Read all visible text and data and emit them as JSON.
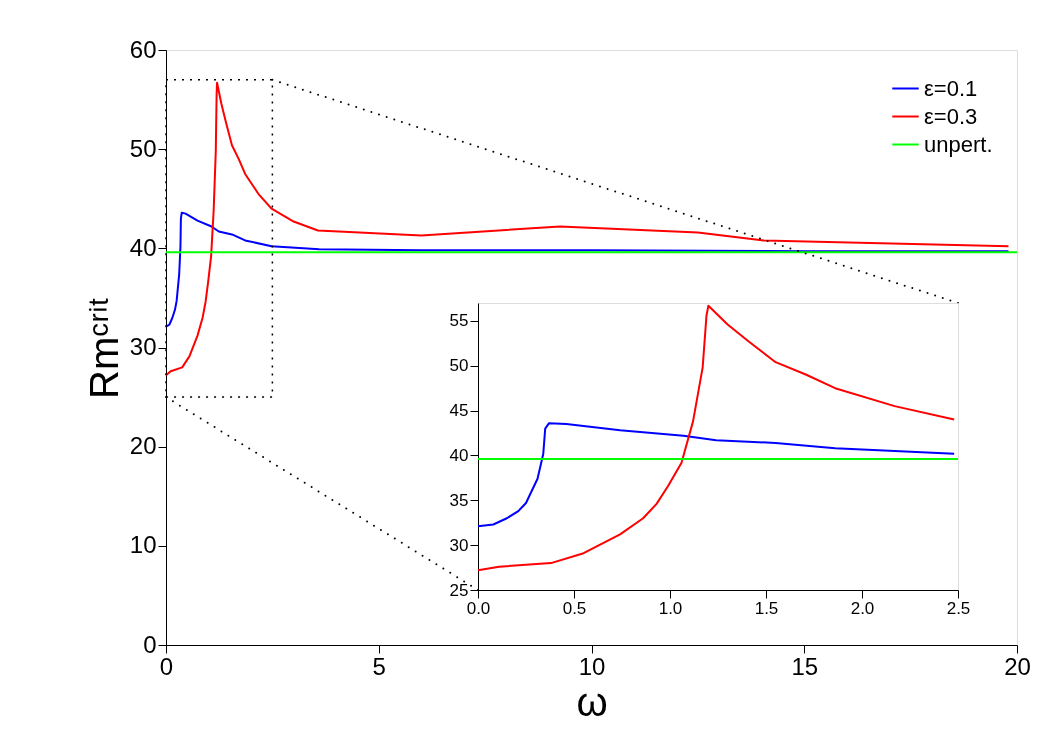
{
  "chart_data": [
    {
      "type": "line",
      "xlabel": "ω",
      "ylabel": "Rmᶜʳⁱᵗ",
      "xlim": [
        0,
        20
      ],
      "ylim": [
        0,
        60
      ],
      "xticks": [
        0,
        5,
        10,
        15,
        20
      ],
      "yticks": [
        0,
        10,
        20,
        30,
        40,
        50,
        60
      ],
      "grid": false,
      "legend": "top right",
      "line_style": "solid",
      "series": [
        {
          "name": "ε=0.1",
          "color": "#0000ff",
          "x": [
            0,
            0.08,
            0.15,
            0.21,
            0.25,
            0.31,
            0.34,
            0.35,
            0.37,
            0.46,
            0.74,
            1.07,
            1.24,
            1.55,
            1.86,
            2.48,
            3.6,
            6,
            10,
            15,
            19.8
          ],
          "values": [
            32.1,
            32.3,
            33.0,
            33.8,
            34.7,
            37.4,
            40.2,
            43.0,
            43.6,
            43.5,
            42.8,
            42.2,
            41.7,
            41.4,
            40.8,
            40.2,
            39.9,
            39.8,
            39.8,
            39.7,
            39.7
          ]
        },
        {
          "name": "ε=0.3",
          "color": "#ff0000",
          "x": [
            0,
            0.11,
            0.38,
            0.55,
            0.74,
            0.86,
            0.93,
            0.99,
            1.06,
            1.12,
            1.17,
            1.19,
            1.2,
            1.3,
            1.41,
            1.55,
            1.71,
            1.86,
            2.17,
            2.48,
            3.0,
            3.57,
            6.0,
            9.26,
            12.5,
            14.05,
            19.8
          ],
          "values": [
            27.2,
            27.6,
            28.0,
            29.1,
            31.2,
            33.0,
            34.6,
            36.6,
            39.2,
            43.8,
            49.8,
            55.6,
            56.7,
            54.6,
            52.7,
            50.4,
            49.0,
            47.5,
            45.5,
            44.0,
            42.7,
            41.8,
            41.3,
            42.2,
            41.6,
            40.8,
            40.2
          ]
        },
        {
          "name": "unpert.",
          "color": "#00ff00",
          "x": [
            0,
            20
          ],
          "values": [
            39.6,
            39.6
          ]
        }
      ]
    },
    {
      "type": "line",
      "xlim": [
        0,
        2.5
      ],
      "ylim": [
        25,
        57
      ],
      "xticks": [
        {
          "value": 0,
          "label": "0.0"
        },
        0.5,
        {
          "value": 1,
          "label": "1.0"
        },
        1.5,
        {
          "value": 2,
          "label": "2.0"
        },
        2.5
      ],
      "yticks": [
        25,
        30,
        35,
        40,
        45,
        50,
        55
      ],
      "grid": false,
      "legend": false,
      "line_style": "solid",
      "series": [
        {
          "color": "#0000ff",
          "x": [
            0,
            0.08,
            0.15,
            0.21,
            0.25,
            0.31,
            0.34,
            0.35,
            0.37,
            0.46,
            0.74,
            1.07,
            1.24,
            1.55,
            1.86,
            2.48
          ],
          "values": [
            32.1,
            32.3,
            33.0,
            33.8,
            34.7,
            37.4,
            40.2,
            43.0,
            43.6,
            43.5,
            42.8,
            42.2,
            41.7,
            41.4,
            40.8,
            40.2
          ]
        },
        {
          "color": "#ff0000",
          "x": [
            0,
            0.11,
            0.38,
            0.55,
            0.74,
            0.86,
            0.93,
            0.99,
            1.06,
            1.12,
            1.17,
            1.19,
            1.2,
            1.3,
            1.41,
            1.55,
            1.71,
            1.86,
            2.17,
            2.48
          ],
          "values": [
            27.2,
            27.6,
            28.0,
            29.1,
            31.2,
            33.0,
            34.6,
            36.6,
            39.2,
            43.8,
            49.8,
            55.6,
            56.7,
            54.6,
            52.7,
            50.4,
            49.0,
            47.5,
            45.5,
            44.0
          ]
        },
        {
          "color": "#00ff00",
          "x": [
            0,
            2.5
          ],
          "values": [
            39.6,
            39.6
          ]
        }
      ]
    }
  ]
}
